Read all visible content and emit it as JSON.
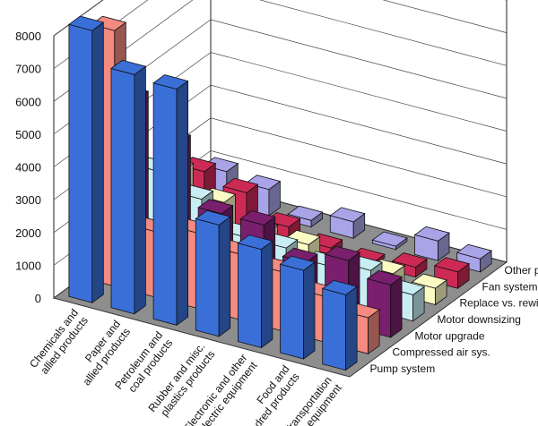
{
  "chart_data": {
    "type": "bar",
    "categories": [
      [
        "Chemicals and",
        "allied products"
      ],
      [
        "Paper and",
        "allied products"
      ],
      [
        "Petroleum and",
        "coal products"
      ],
      [
        "Rubber and misc.",
        "plastics products"
      ],
      [
        "Electronic and other",
        "electric equipment"
      ],
      [
        "Food and",
        "kindred products"
      ],
      [
        "Transportation",
        "equipment"
      ]
    ],
    "series": [
      {
        "name": "Pump system",
        "color": "#3a6fd8",
        "values": [
          8300,
          7300,
          7200,
          3400,
          3000,
          2700,
          2300
        ]
      },
      {
        "name": "Compressed air sys.",
        "color": "#f48a80",
        "values": [
          7800,
          2000,
          2300,
          2000,
          1800,
          1400,
          1100
        ]
      },
      {
        "name": "Motor upgrade",
        "color": "#7a1f6e",
        "values": [
          5200,
          4200,
          2400,
          2400,
          1600,
          2000,
          1600
        ]
      },
      {
        "name": "Motor downsizing",
        "color": "#c8eef4",
        "values": [
          2500,
          2000,
          1200,
          1200,
          1000,
          1200,
          800
        ]
      },
      {
        "name": "Replace vs. rewind",
        "color": "#fbfbc4",
        "values": [
          2000,
          1400,
          800,
          800,
          500,
          600,
          500
        ]
      },
      {
        "name": "Fan system",
        "color": "#cc2a55",
        "values": [
          1500,
          1200,
          500,
          200,
          100,
          300,
          500
        ]
      },
      {
        "name": "Other processing systems",
        "color": "#a9a4e8",
        "values": [
          1000,
          800,
          200,
          500,
          100,
          600,
          400
        ]
      }
    ],
    "ylim": [
      0,
      8000
    ],
    "yticks": [
      "0",
      "1000",
      "2000",
      "3000",
      "4000",
      "5000",
      "6000",
      "7000",
      "8000"
    ],
    "grid": true,
    "legend": "series labels along right depth axis"
  }
}
